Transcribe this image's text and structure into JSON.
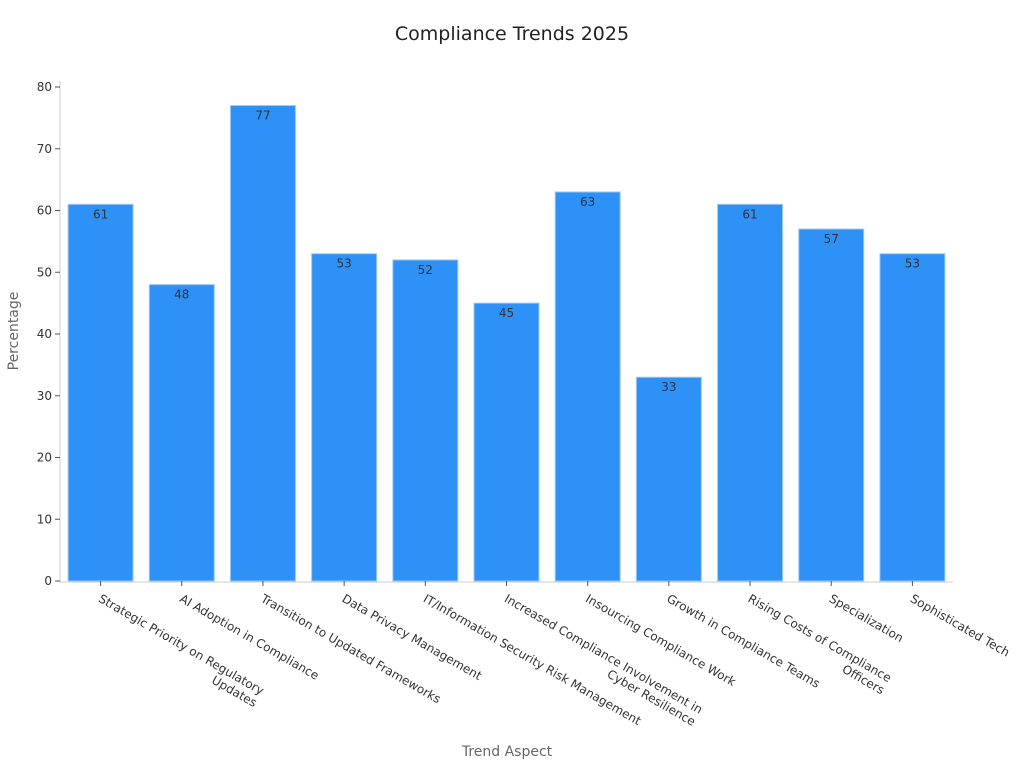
{
  "chart_data": {
    "type": "bar",
    "title": "Compliance Trends 2025",
    "x_label": "Trend Aspect",
    "y_label": "Percentage",
    "categories": [
      "Strategic Priority on Regulatory\nUpdates",
      "AI Adoption in Compliance",
      "Transition to Updated Frameworks",
      "Data Privacy Management",
      "IT/Information Security Risk Management",
      "Increased Compliance Involvement in\nCyber Resilience",
      "Insourcing Compliance Work",
      "Growth in Compliance Teams",
      "Rising Costs of Compliance\nOfficers",
      "Specialization",
      "Sophisticated Tech"
    ],
    "values": [
      61,
      48,
      77,
      53,
      52,
      45,
      63,
      33,
      61,
      57,
      53
    ],
    "color": "#2e91f7",
    "ylim": [
      0,
      80
    ],
    "yticks": [
      0,
      10,
      20,
      30,
      40,
      50,
      60,
      70,
      80
    ],
    "grid": false
  }
}
